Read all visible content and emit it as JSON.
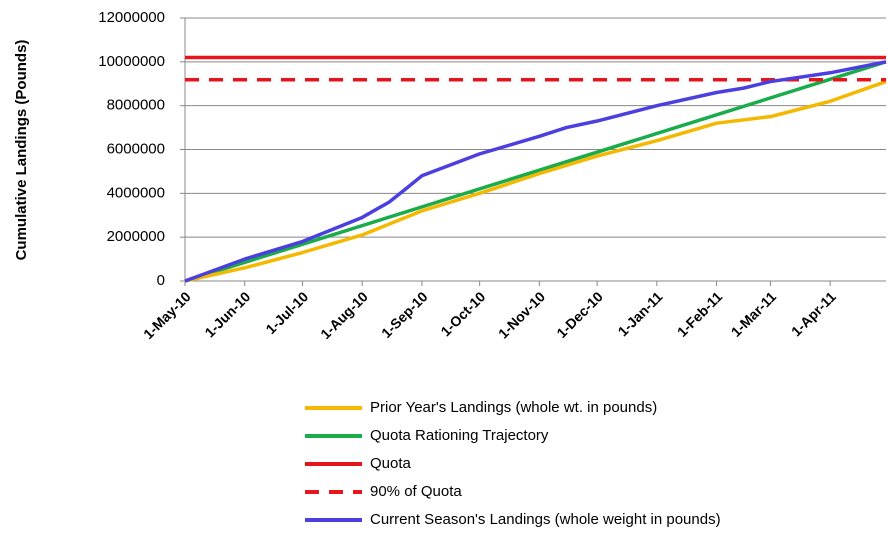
{
  "chart_data": {
    "type": "line",
    "ylabel": "Cumulative Landings (Pounds)",
    "ylim": [
      0,
      12000000
    ],
    "yticks": [
      0,
      2000000,
      4000000,
      6000000,
      8000000,
      10000000,
      12000000
    ],
    "xlim": [
      "2010-05-01",
      "2011-04-30"
    ],
    "xticks": [
      {
        "value": "2010-05-01",
        "label": "1-May-10"
      },
      {
        "value": "2010-06-01",
        "label": "1-Jun-10"
      },
      {
        "value": "2010-07-01",
        "label": "1-Jul-10"
      },
      {
        "value": "2010-08-01",
        "label": "1-Aug-10"
      },
      {
        "value": "2010-09-01",
        "label": "1-Sep-10"
      },
      {
        "value": "2010-10-01",
        "label": "1-Oct-10"
      },
      {
        "value": "2010-11-01",
        "label": "1-Nov-10"
      },
      {
        "value": "2010-12-01",
        "label": "1-Dec-10"
      },
      {
        "value": "2011-01-01",
        "label": "1-Jan-11"
      },
      {
        "value": "2011-02-01",
        "label": "1-Feb-11"
      },
      {
        "value": "2011-03-01",
        "label": "1-Mar-11"
      },
      {
        "value": "2011-04-01",
        "label": "1-Apr-11"
      }
    ],
    "grid": true,
    "series": [
      {
        "name": "Prior Year's Landings (whole wt. in pounds)",
        "color": "#f5b800",
        "dash": false,
        "x": [
          "2010-05-01",
          "2010-06-01",
          "2010-07-01",
          "2010-08-01",
          "2010-09-01",
          "2010-10-01",
          "2010-11-01",
          "2010-12-01",
          "2011-01-01",
          "2011-02-01",
          "2011-03-01",
          "2011-04-01",
          "2011-04-30"
        ],
        "values": [
          0,
          600000,
          1300000,
          2100000,
          3200000,
          4000000,
          4900000,
          5700000,
          6400000,
          7200000,
          7500000,
          8200000,
          9100000
        ]
      },
      {
        "name": "Quota Rationing Trajectory",
        "color": "#1aab4a",
        "dash": false,
        "x": [
          "2010-05-01",
          "2011-04-30"
        ],
        "values": [
          0,
          10000000
        ]
      },
      {
        "name": "Quota",
        "color": "#e8141b",
        "dash": false,
        "x": [
          "2010-05-01",
          "2011-04-30"
        ],
        "values": [
          10200000,
          10200000
        ]
      },
      {
        "name": "90% of Quota",
        "color": "#e8141b",
        "dash": true,
        "x": [
          "2010-05-01",
          "2011-04-30"
        ],
        "values": [
          9180000,
          9180000
        ]
      },
      {
        "name": "Current Season's Landings (whole weight in pounds)",
        "color": "#4b3fe0",
        "dash": false,
        "x": [
          "2010-05-01",
          "2010-06-01",
          "2010-07-01",
          "2010-08-01",
          "2010-08-15",
          "2010-08-25",
          "2010-09-01",
          "2010-10-01",
          "2010-11-01",
          "2010-11-15",
          "2010-12-01",
          "2011-01-01",
          "2011-02-01",
          "2011-02-15",
          "2011-03-01",
          "2011-04-01",
          "2011-04-30"
        ],
        "values": [
          0,
          1000000,
          1800000,
          2900000,
          3600000,
          4300000,
          4800000,
          5800000,
          6600000,
          7000000,
          7300000,
          8000000,
          8600000,
          8800000,
          9100000,
          9500000,
          10000000
        ]
      }
    ]
  }
}
